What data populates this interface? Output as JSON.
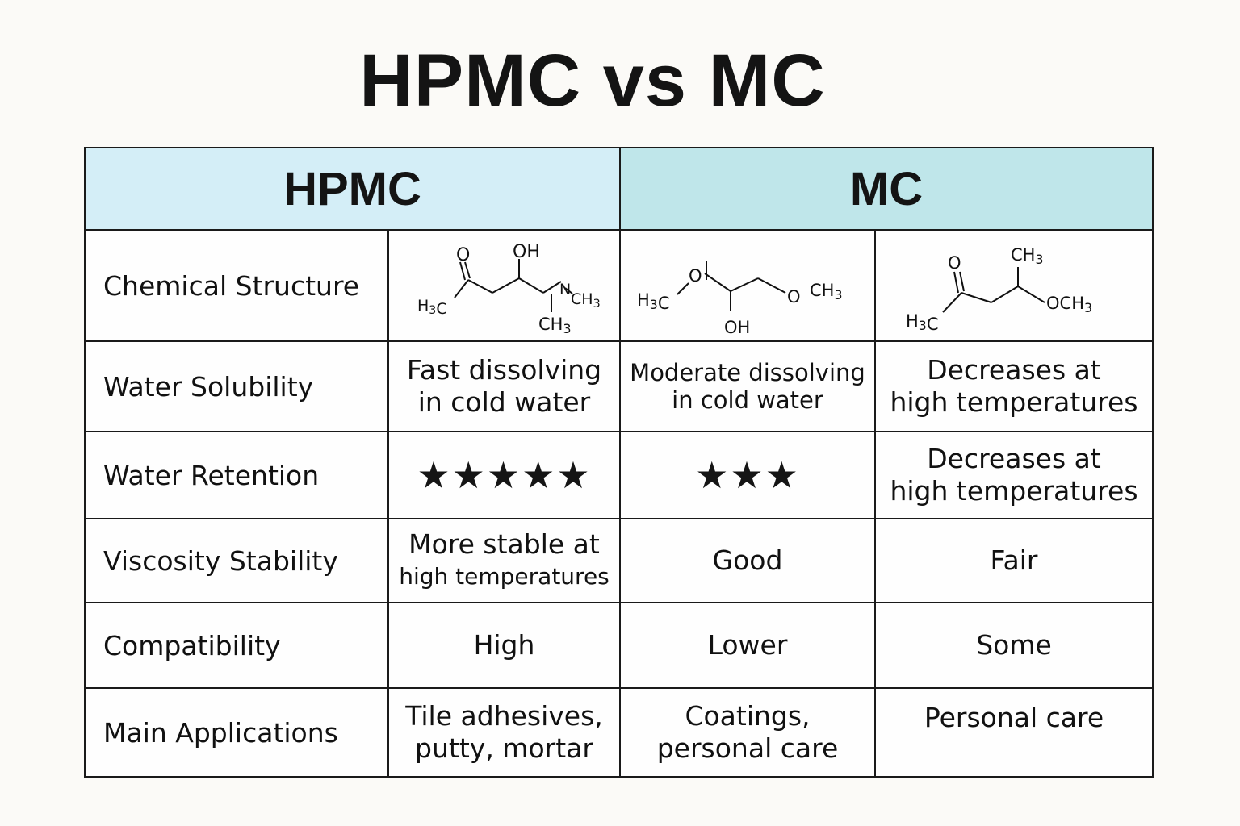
{
  "title": "HPMC vs MC",
  "columns": {
    "hpmc": "HPMC",
    "mc": "MC"
  },
  "rows": {
    "structure": {
      "label": "Chemical Structure",
      "hpmc_atoms": {
        "o": "O",
        "oh": "OH",
        "h3c": "H3C",
        "n": "N",
        "ch3a": "CH3",
        "ch3b": "CH3"
      },
      "mc1_atoms": {
        "h3c": "H3C",
        "o1": "O",
        "oh": "OH",
        "o2": "O",
        "ch3": "CH3"
      },
      "mc2_atoms": {
        "o": "O",
        "ch3": "CH3",
        "h3c": "H3C",
        "och3": "OCH3"
      }
    },
    "solubility": {
      "label": "Water Solubility",
      "hpmc": [
        "Fast dissolving",
        "in cold water"
      ],
      "mc1": [
        "Moderate dissolving",
        "in cold water"
      ],
      "mc2": [
        "Decreases at",
        "high temperatures"
      ]
    },
    "retention": {
      "label": "Water Retention",
      "hpmc_stars": 5,
      "mc1_stars": 3,
      "mc2": [
        "Decreases at",
        "high temperatures"
      ]
    },
    "viscosity": {
      "label": "Viscosity Stability",
      "hpmc": [
        "More stable at",
        "high temperatures"
      ],
      "mc1": "Good",
      "mc2": "Fair"
    },
    "compatibility": {
      "label": "Compatibility",
      "hpmc": "High",
      "mc1": "Lower",
      "mc2": "Some"
    },
    "applications": {
      "label": "Main Applications",
      "hpmc": [
        "Tile adhesives,",
        "putty, mortar"
      ],
      "mc1": [
        "Coatings,",
        "personal care"
      ],
      "mc2": "Personal care"
    }
  }
}
